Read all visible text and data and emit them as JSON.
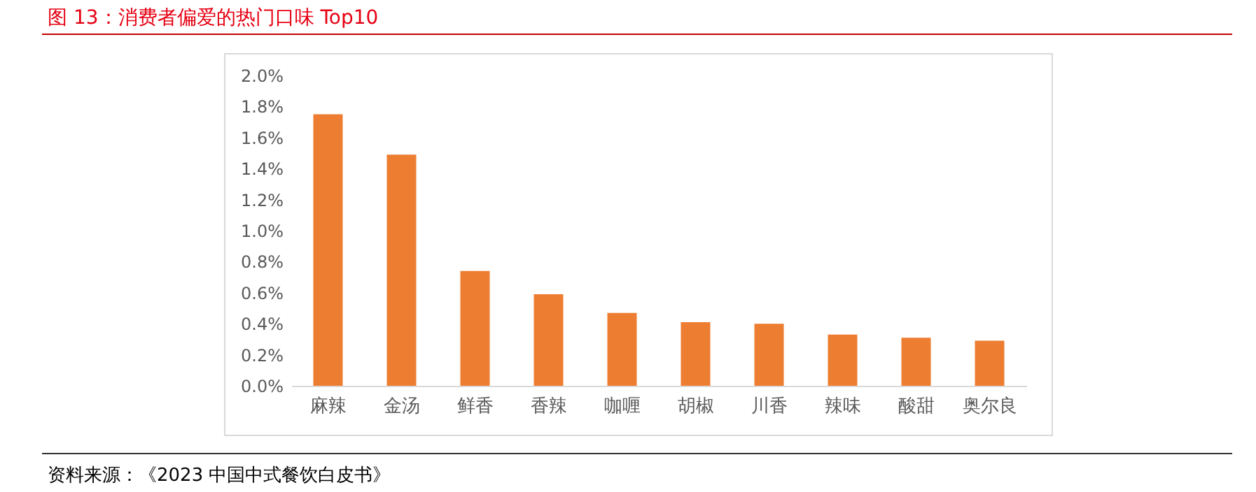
{
  "chart_data": {
    "type": "bar",
    "title": "图 13：消费者偏爱的热门口味 Top10",
    "categories": [
      "麻辣",
      "金汤",
      "鲜香",
      "香辣",
      "咖喱",
      "胡椒",
      "川香",
      "辣味",
      "酸甜",
      "奥尔良"
    ],
    "values": [
      1.75,
      1.49,
      0.74,
      0.59,
      0.47,
      0.41,
      0.4,
      0.33,
      0.31,
      0.29
    ],
    "color": "#ed7d31",
    "ylim": [
      0,
      2
    ],
    "yticks": [
      {
        "value": 0,
        "label": "0.0%"
      },
      {
        "value": 0.2,
        "label": "0.2%"
      },
      {
        "value": 0.4,
        "label": "0.4%"
      },
      {
        "value": 0.6,
        "label": "0.6%"
      },
      {
        "value": 0.8,
        "label": "0.8%"
      },
      {
        "value": 1,
        "label": "1.0%"
      },
      {
        "value": 1.2,
        "label": "1.2%"
      },
      {
        "value": 1.4,
        "label": "1.4%"
      },
      {
        "value": 1.6,
        "label": "1.6%"
      },
      {
        "value": 1.8,
        "label": "1.8%"
      },
      {
        "value": 2,
        "label": "2.0%"
      }
    ],
    "grid": false,
    "annotations": [
      "资料来源：《2023 中国中式餐饮白皮书》"
    ]
  }
}
